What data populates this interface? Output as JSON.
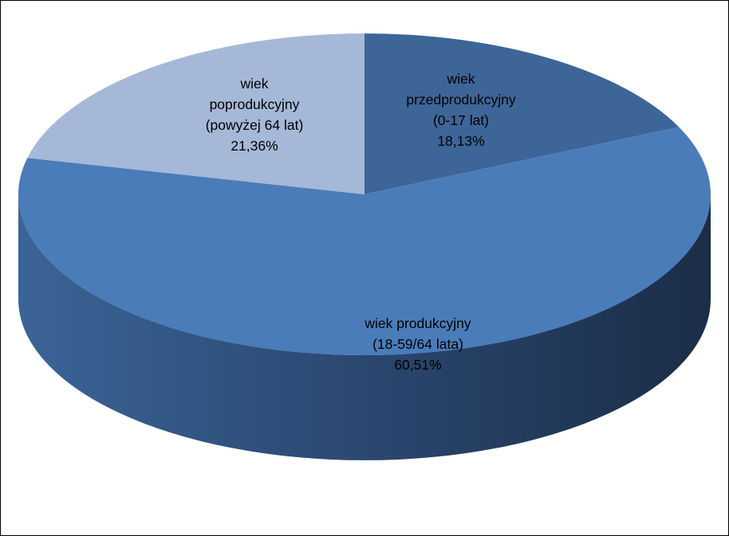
{
  "chart_data": {
    "type": "pie",
    "style": "3d",
    "legend": "none",
    "slices": [
      {
        "label_lines": [
          "wiek",
          "przedprodukcyjny",
          "(0-17 lat)"
        ],
        "value": 18.13,
        "value_label": "18,13%",
        "color": "#3d6598"
      },
      {
        "label_lines": [
          "wiek produkcyjny",
          "(18-59/64 lata)"
        ],
        "value": 60.51,
        "value_label": "60,51%",
        "color": "#4a7cba"
      },
      {
        "label_lines": [
          "wiek",
          "poprodukcyjny",
          "(powyżej 64 lat)"
        ],
        "value": 21.36,
        "value_label": "21,36%",
        "color": "#a6b8d8"
      }
    ]
  }
}
